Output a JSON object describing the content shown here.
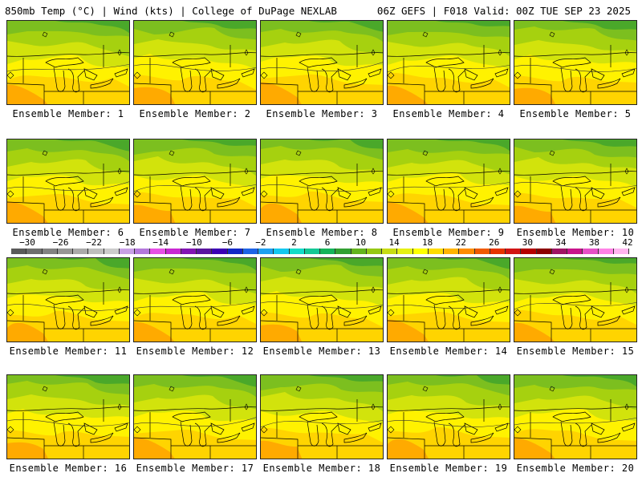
{
  "header": {
    "left": "850mb Temp (°C) | Wind (kts) | College of DuPage NEXLAB",
    "right": "06Z GEFS | F018 Valid: 00Z TUE SEP 23 2025"
  },
  "member_prefix": "Ensemble Member: ",
  "members": [
    "1",
    "2",
    "3",
    "4",
    "5",
    "6",
    "7",
    "8",
    "9",
    "10",
    "11",
    "12",
    "13",
    "14",
    "15",
    "16",
    "17",
    "18",
    "19",
    "20"
  ],
  "colorbar": {
    "labels": [
      "−30",
      "−26",
      "−22",
      "−18",
      "−14",
      "−10",
      "−6",
      "−2",
      "2",
      "6",
      "10",
      "14",
      "18",
      "22",
      "26",
      "30",
      "34",
      "38",
      "42"
    ],
    "colors": [
      "#5a5a5a",
      "#6e6e6e",
      "#828282",
      "#969696",
      "#aaaaaa",
      "#bebebe",
      "#cccccc",
      "#c8a0e6",
      "#b478dc",
      "#e650e6",
      "#c828d2",
      "#8214b4",
      "#5a14a0",
      "#3c00b4",
      "#1428c8",
      "#1e64e6",
      "#1ea0f0",
      "#14c8f0",
      "#14dcc8",
      "#14c896",
      "#14b45a",
      "#32a032",
      "#64b41e",
      "#96c814",
      "#c8dc14",
      "#e6f014",
      "#ffff00",
      "#ffdc00",
      "#ffb400",
      "#ff8c00",
      "#f05a00",
      "#e63200",
      "#d21414",
      "#b40000",
      "#8c0000",
      "#a01464",
      "#c8148c",
      "#e650c8",
      "#ff82e6",
      "#ffb4f0"
    ]
  },
  "palette": {
    "green_dark": "#4aa82a",
    "green": "#7cbf1f",
    "green_light": "#a6d10f",
    "yellow_green": "#d2e30c",
    "yellow": "#fff200",
    "gold": "#ffd400",
    "orange": "#ffaa00"
  }
}
